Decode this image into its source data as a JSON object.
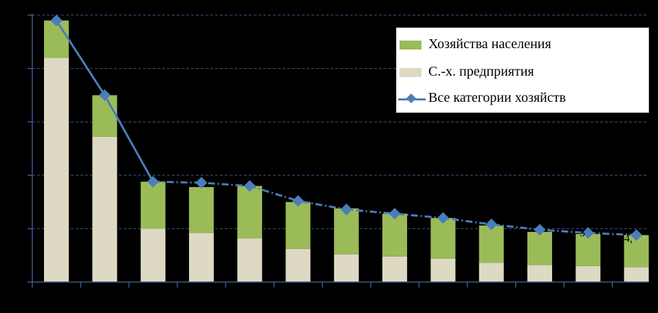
{
  "chart_data": {
    "type": "bar",
    "stacked": true,
    "categories": [
      "",
      "",
      "",
      "",
      "",
      "",
      "",
      "",
      "",
      "",
      "",
      "",
      ""
    ],
    "series": [
      {
        "name": "С.-х. предприятия",
        "kind": "bar",
        "color": "#ddd9c3",
        "values": [
          21.0,
          13.6,
          5.0,
          4.6,
          4.1,
          3.1,
          2.6,
          2.4,
          2.2,
          1.8,
          1.6,
          1.5,
          1.4
        ]
      },
      {
        "name": "Хозяйства населения",
        "kind": "bar",
        "color": "#9bbb59",
        "values": [
          3.5,
          3.9,
          4.4,
          4.3,
          4.9,
          4.4,
          4.3,
          4.0,
          3.8,
          3.5,
          3.1,
          3.0,
          3.0
        ]
      },
      {
        "name": "Все категории хозяйств",
        "kind": "line",
        "color": "#4a7ebb",
        "values": [
          24.5,
          17.5,
          9.4,
          9.3,
          9.0,
          7.6,
          6.8,
          6.4,
          6.0,
          5.4,
          4.9,
          4.6,
          4.4
        ]
      }
    ],
    "ylim": [
      0,
      25
    ],
    "grid": true,
    "legend": "top-right",
    "clipped_labels": [
      "5",
      "4,"
    ]
  }
}
